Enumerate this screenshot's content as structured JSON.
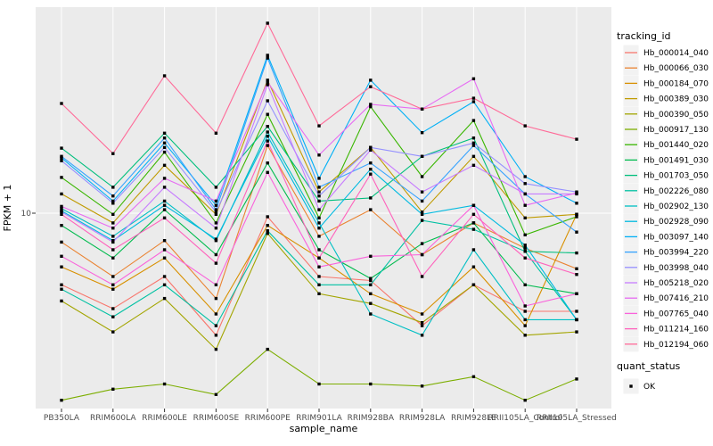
{
  "chart_data": {
    "type": "line",
    "title": "",
    "xlabel": "sample_name",
    "ylabel": "FPKM + 1",
    "y_scale": "log10",
    "y_tick_labels": [
      "10"
    ],
    "y_tick_values": [
      10
    ],
    "ylim": [
      1.86,
      58.9
    ],
    "grid": "on",
    "panel_bg": "#EBEBEB",
    "grid_color": "#FFFFFF",
    "point_color": "#000000",
    "legend_key_bg": "#F2F2F2",
    "legend_position": "right",
    "legend_title": "tracking_id",
    "legend2_title": "quant_status",
    "legend2_items": [
      {
        "label": "OK",
        "marker": "black-square"
      }
    ],
    "categories": [
      "PB350LA",
      "RRIM600LA",
      "RRIM600LE",
      "RRIM600SE",
      "RRIM600PE",
      "RRIM901LA",
      "RRIM928BA",
      "RRIM928LA",
      "RRIM928LE",
      "RRII105LA_Control",
      "RRII105LA_Stressed"
    ],
    "series": [
      {
        "name": "Hb_000014_040",
        "color": "#F8766D",
        "values": [
          5.4,
          4.4,
          5.8,
          3.5,
          9.7,
          5.8,
          5.6,
          3.8,
          5.4,
          4.3,
          4.3
        ]
      },
      {
        "name": "Hb_000066_030",
        "color": "#EA8331",
        "values": [
          7.8,
          5.8,
          7.9,
          4.8,
          17.9,
          8.2,
          10.3,
          7.0,
          9.2,
          7.4,
          6.2
        ]
      },
      {
        "name": "Hb_000184_070",
        "color": "#D89000",
        "values": [
          6.3,
          5.2,
          6.8,
          4.2,
          9.0,
          6.8,
          5.0,
          4.2,
          6.3,
          3.8,
          9.9
        ]
      },
      {
        "name": "Hb_000389_030",
        "color": "#C09B00",
        "values": [
          11.8,
          9.2,
          15.1,
          9.9,
          31.4,
          12.0,
          17.6,
          10.1,
          16.3,
          9.6,
          9.9
        ]
      },
      {
        "name": "Hb_000390_050",
        "color": "#A3A500",
        "values": [
          4.7,
          3.6,
          4.8,
          3.1,
          8.4,
          5.0,
          4.6,
          3.9,
          5.4,
          3.5,
          3.6
        ]
      },
      {
        "name": "Hb_000917_130",
        "color": "#7CAE00",
        "values": [
          2.0,
          2.2,
          2.3,
          2.1,
          3.1,
          2.3,
          2.3,
          2.26,
          2.45,
          2.0,
          2.4
        ]
      },
      {
        "name": "Hb_001440_020",
        "color": "#39B600",
        "values": [
          13.6,
          9.9,
          16.9,
          9.2,
          23.4,
          9.6,
          25.0,
          13.7,
          22.2,
          8.3,
          9.7
        ]
      },
      {
        "name": "Hb_001491_030",
        "color": "#00BB4E",
        "values": [
          9.0,
          6.8,
          10.3,
          7.0,
          15.4,
          7.3,
          5.7,
          7.7,
          9.2,
          5.4,
          5.0
        ]
      },
      {
        "name": "Hb_001703_050",
        "color": "#00BF7D",
        "values": [
          17.5,
          12.5,
          19.9,
          12.5,
          21.1,
          11.1,
          11.4,
          16.3,
          19.1,
          7.2,
          7.1
        ]
      },
      {
        "name": "Hb_002226_080",
        "color": "#00C1A3",
        "values": [
          5.2,
          4.1,
          5.4,
          3.8,
          8.6,
          5.4,
          5.4,
          9.4,
          8.7,
          7.2,
          4.0
        ]
      },
      {
        "name": "Hb_002902_130",
        "color": "#00BFC4",
        "values": [
          10.4,
          8.2,
          11.1,
          7.9,
          20.1,
          9.2,
          4.2,
          3.5,
          7.3,
          4.0,
          4.0
        ]
      },
      {
        "name": "Hb_002928_090",
        "color": "#00BAE0",
        "values": [
          10.2,
          7.9,
          10.7,
          8.0,
          19.4,
          8.8,
          14.6,
          9.9,
          10.7,
          7.6,
          4.0
        ]
      },
      {
        "name": "Hb_003097_140",
        "color": "#00B0F6",
        "values": [
          16.1,
          11.1,
          18.3,
          10.7,
          38.9,
          13.5,
          31.4,
          20.0,
          26.1,
          13.7,
          10.9
        ]
      },
      {
        "name": "Hb_003994_220",
        "color": "#35A2FF",
        "values": [
          16.3,
          11.6,
          19.1,
          10.3,
          38.0,
          12.5,
          15.4,
          11.1,
          17.9,
          11.8,
          8.5
        ]
      },
      {
        "name": "Hb_003998_040",
        "color": "#9590FF",
        "values": [
          15.7,
          10.9,
          17.6,
          10.1,
          26.3,
          11.6,
          17.6,
          16.3,
          18.3,
          12.9,
          12.0
        ]
      },
      {
        "name": "Hb_005218_020",
        "color": "#C77CFF",
        "values": [
          10.1,
          7.8,
          12.5,
          8.8,
          30.2,
          10.3,
          17.2,
          12.0,
          15.1,
          11.8,
          11.8
        ]
      },
      {
        "name": "Hb_007416_210",
        "color": "#E76BF3",
        "values": [
          10.6,
          8.8,
          13.5,
          11.1,
          30.9,
          16.5,
          25.5,
          24.5,
          31.8,
          10.7,
          11.9
        ]
      },
      {
        "name": "Hb_007765_040",
        "color": "#FA62DB",
        "values": [
          6.9,
          5.4,
          7.3,
          5.4,
          14.2,
          6.3,
          6.9,
          7.0,
          10.7,
          4.5,
          5.0
        ]
      },
      {
        "name": "Hb_011214_160",
        "color": "#FF62BC",
        "values": [
          9.9,
          7.3,
          9.6,
          6.5,
          18.6,
          6.8,
          14.0,
          5.8,
          9.9,
          6.8,
          5.9
        ]
      },
      {
        "name": "Hb_012194_060",
        "color": "#FF6A98",
        "values": [
          25.7,
          16.7,
          32.6,
          19.9,
          51.3,
          21.2,
          29.7,
          24.5,
          26.9,
          21.2,
          18.9
        ]
      }
    ]
  }
}
